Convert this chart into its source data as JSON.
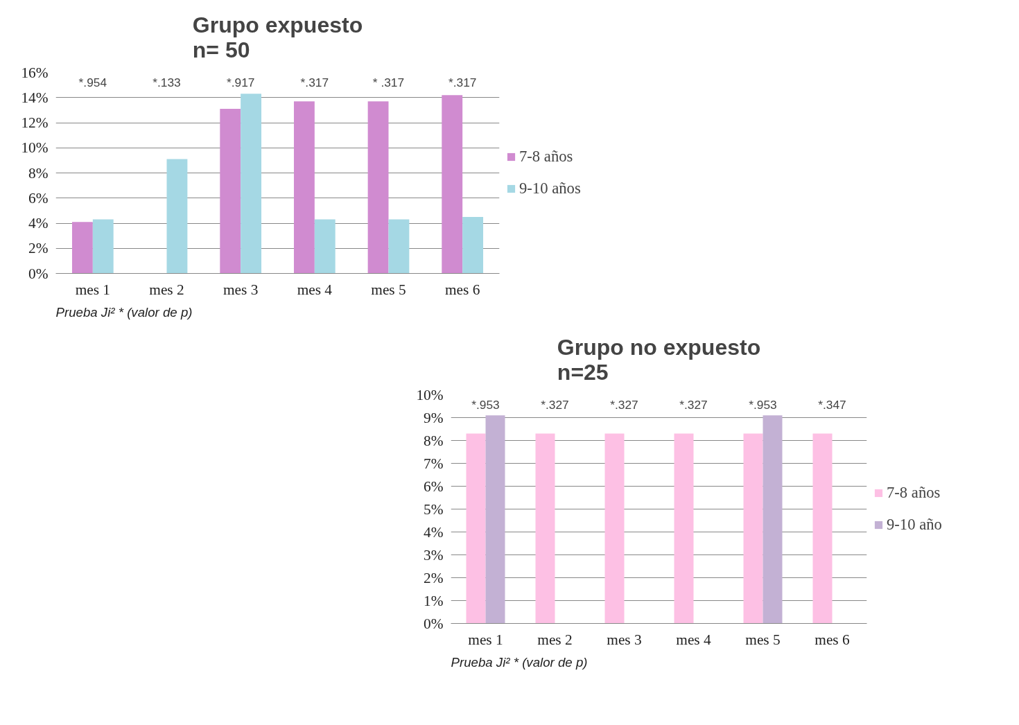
{
  "chart_data": [
    {
      "type": "bar",
      "title": "Grupo expuesto\nn= 50",
      "categories": [
        "mes 1",
        "mes 2",
        "mes 3",
        "mes 4",
        "mes 5",
        "mes 6"
      ],
      "series": [
        {
          "name": "7-8 años",
          "color": "#d08bd0",
          "values": [
            4.1,
            0,
            13.1,
            13.7,
            13.7,
            14.2
          ]
        },
        {
          "name": "9-10 años",
          "color": "#a5d8e4",
          "values": [
            4.3,
            9.1,
            14.3,
            4.3,
            4.3,
            4.5
          ]
        }
      ],
      "ylim": [
        0,
        16
      ],
      "yticks": [
        {
          "value": 0,
          "label": "0%"
        },
        {
          "value": 2,
          "label": "2%"
        },
        {
          "value": 4,
          "label": "4%"
        },
        {
          "value": 6,
          "label": "6%"
        },
        {
          "value": 8,
          "label": "8%"
        },
        {
          "value": 10,
          "label": "10%"
        },
        {
          "value": 12,
          "label": "12%"
        },
        {
          "value": 14,
          "label": "14%"
        },
        {
          "value": 16,
          "label": "16%"
        }
      ],
      "grid": "y",
      "legend": "right",
      "annotations": [
        "*.954",
        "*.133",
        "*.917",
        "*.317",
        "* .317",
        "*.317",
        "Prueba Ji² * (valor de p)"
      ]
    },
    {
      "type": "bar",
      "title": "Grupo no expuesto\nn=25",
      "categories": [
        "mes 1",
        "mes 2",
        "mes 3",
        "mes 4",
        "mes 5",
        "mes 6"
      ],
      "series": [
        {
          "name": "7-8 años",
          "color": "#fdc0e4",
          "values": [
            8.3,
            8.3,
            8.3,
            8.3,
            8.3,
            8.3
          ]
        },
        {
          "name": "9-10 año",
          "color": "#c3b1d4",
          "values": [
            9.1,
            0,
            0,
            0,
            9.1,
            0
          ]
        }
      ],
      "ylim": [
        0,
        10
      ],
      "yticks": [
        {
          "value": 0,
          "label": "0%"
        },
        {
          "value": 1,
          "label": "1%"
        },
        {
          "value": 2,
          "label": "2%"
        },
        {
          "value": 3,
          "label": "3%"
        },
        {
          "value": 4,
          "label": "4%"
        },
        {
          "value": 5,
          "label": "5%"
        },
        {
          "value": 6,
          "label": "6%"
        },
        {
          "value": 7,
          "label": "7%"
        },
        {
          "value": 8,
          "label": "8%"
        },
        {
          "value": 9,
          "label": "9%"
        },
        {
          "value": 10,
          "label": "10%"
        }
      ],
      "grid": "y",
      "legend": "right",
      "annotations": [
        "*.953",
        "*.327",
        "*.327",
        "*.327",
        "*.953",
        "*.347",
        "Prueba Ji² * (valor de p)"
      ]
    }
  ]
}
